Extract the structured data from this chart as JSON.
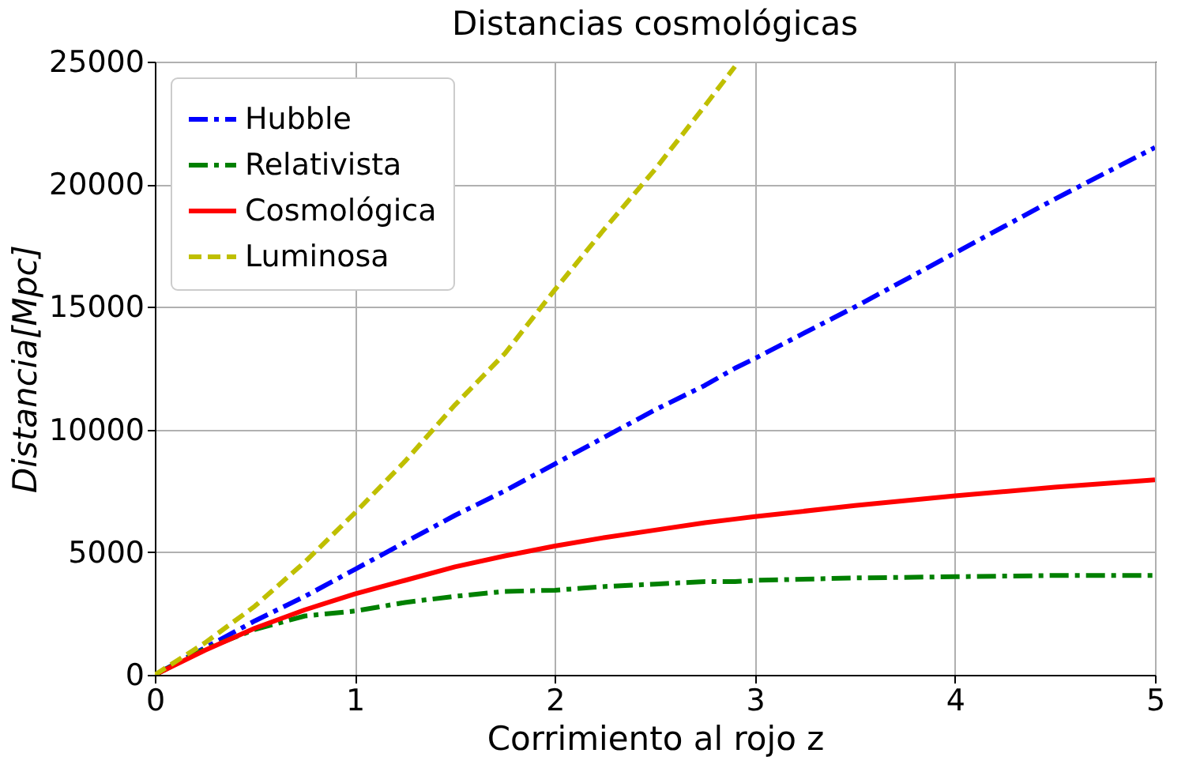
{
  "chart_data": {
    "type": "line",
    "title": "Distancias cosmológicas",
    "xlabel": "Corrimiento al rojo z",
    "ylabel": "Distancia[Mpc]",
    "xlim": [
      0,
      5
    ],
    "ylim": [
      0,
      25000
    ],
    "xticks": [
      0,
      1,
      2,
      3,
      4,
      5
    ],
    "yticks": [
      0,
      5000,
      10000,
      15000,
      20000,
      25000
    ],
    "grid": true,
    "legend": "top left",
    "marker": "none",
    "x": [
      0,
      0.25,
      0.5,
      0.75,
      1,
      1.25,
      1.5,
      1.75,
      2,
      2.25,
      2.5,
      2.75,
      2.9,
      3,
      3.5,
      4,
      4.5,
      5
    ],
    "series": [
      {
        "name": "Hubble",
        "color": "#0000ff",
        "line_style": "dashdot",
        "values": [
          0,
          1100,
          2200,
          3200,
          4300,
          5400,
          6500,
          7500,
          8600,
          9700,
          10800,
          11800,
          12500,
          12900,
          15000,
          17200,
          19400,
          21500
        ]
      },
      {
        "name": "Relativista",
        "color": "#008000",
        "line_style": "dashdot",
        "values": [
          0,
          1050,
          1850,
          2400,
          2600,
          2950,
          3200,
          3400,
          3450,
          3600,
          3700,
          3800,
          3800,
          3850,
          3950,
          4000,
          4050,
          4050
        ]
      },
      {
        "name": "Cosmológica",
        "color": "#ff0000",
        "line_style": "solid",
        "values": [
          0,
          1000,
          1900,
          2650,
          3300,
          3850,
          4400,
          4850,
          5250,
          5600,
          5900,
          6200,
          6350,
          6450,
          6900,
          7300,
          7650,
          7950
        ]
      },
      {
        "name": "Luminosa",
        "color": "#bfbf00",
        "line_style": "dashed",
        "values": [
          0,
          1300,
          2800,
          4600,
          6600,
          8700,
          11000,
          13100,
          15700,
          18200,
          20600,
          23200,
          24800,
          null,
          null,
          null,
          null,
          null
        ]
      }
    ]
  }
}
